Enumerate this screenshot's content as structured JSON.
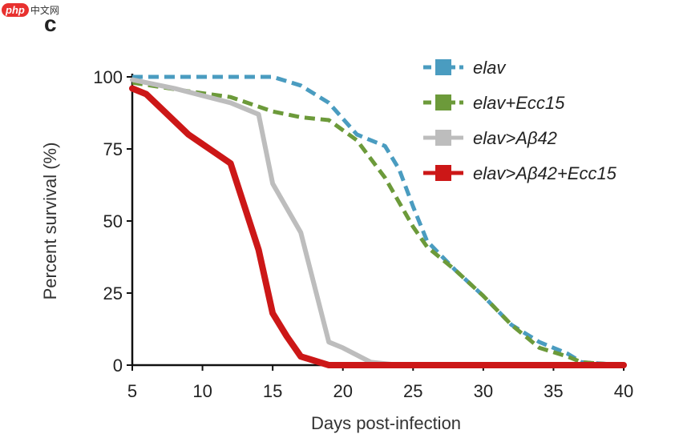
{
  "watermark": {
    "logo": "php",
    "site": "中文网"
  },
  "panel_label": "c",
  "colors": {
    "elav": "#4a9cc0",
    "elav_ecc15": "#6c9a3a",
    "elav_ab42": "#bdbdbd",
    "elav_ab42_ecc15": "#cc1717",
    "axis": "#111111"
  },
  "chart_data": {
    "type": "line",
    "title": "",
    "xlabel": "Days post-infection",
    "ylabel": "Percent survival (%)",
    "xlim": [
      5,
      40
    ],
    "ylim": [
      0,
      100
    ],
    "xticks": [
      5,
      10,
      15,
      20,
      25,
      30,
      35,
      40
    ],
    "yticks": [
      0,
      25,
      50,
      75,
      100
    ],
    "legend_position": "top-right",
    "series": [
      {
        "name": "elav",
        "style": "dashed",
        "color": "#4a9cc0",
        "points": [
          [
            5,
            100
          ],
          [
            10,
            100
          ],
          [
            15,
            100
          ],
          [
            17,
            97
          ],
          [
            19,
            91
          ],
          [
            21,
            80
          ],
          [
            23,
            76
          ],
          [
            24,
            68
          ],
          [
            25,
            55
          ],
          [
            26,
            43
          ],
          [
            28,
            33
          ],
          [
            30,
            24
          ],
          [
            32,
            14
          ],
          [
            34,
            8
          ],
          [
            36,
            4
          ],
          [
            37,
            1
          ],
          [
            40,
            0
          ]
        ]
      },
      {
        "name": "elav+Ecc15",
        "style": "dashed",
        "color": "#6c9a3a",
        "points": [
          [
            5,
            98
          ],
          [
            9,
            95
          ],
          [
            12,
            93
          ],
          [
            15,
            88
          ],
          [
            17,
            86
          ],
          [
            19,
            85
          ],
          [
            21,
            78
          ],
          [
            23,
            65
          ],
          [
            25,
            48
          ],
          [
            26,
            41
          ],
          [
            28,
            33
          ],
          [
            30,
            24
          ],
          [
            32,
            14
          ],
          [
            34,
            6
          ],
          [
            36,
            3
          ],
          [
            37,
            1
          ],
          [
            40,
            0
          ]
        ]
      },
      {
        "name": "elav>Aβ42",
        "style": "solid",
        "color": "#bdbdbd",
        "points": [
          [
            5,
            99
          ],
          [
            8,
            96
          ],
          [
            12,
            91
          ],
          [
            14,
            87
          ],
          [
            15,
            63
          ],
          [
            17,
            46
          ],
          [
            19,
            8
          ],
          [
            20,
            6
          ],
          [
            22,
            1
          ],
          [
            24,
            0
          ],
          [
            40,
            0
          ]
        ]
      },
      {
        "name": "elav>Aβ42+Ecc15",
        "style": "solid",
        "color": "#cc1717",
        "points": [
          [
            5,
            96
          ],
          [
            6,
            94
          ],
          [
            9,
            80
          ],
          [
            12,
            70
          ],
          [
            14,
            40
          ],
          [
            15,
            18
          ],
          [
            16,
            10
          ],
          [
            17,
            3
          ],
          [
            19,
            0
          ],
          [
            40,
            0
          ]
        ]
      }
    ]
  }
}
